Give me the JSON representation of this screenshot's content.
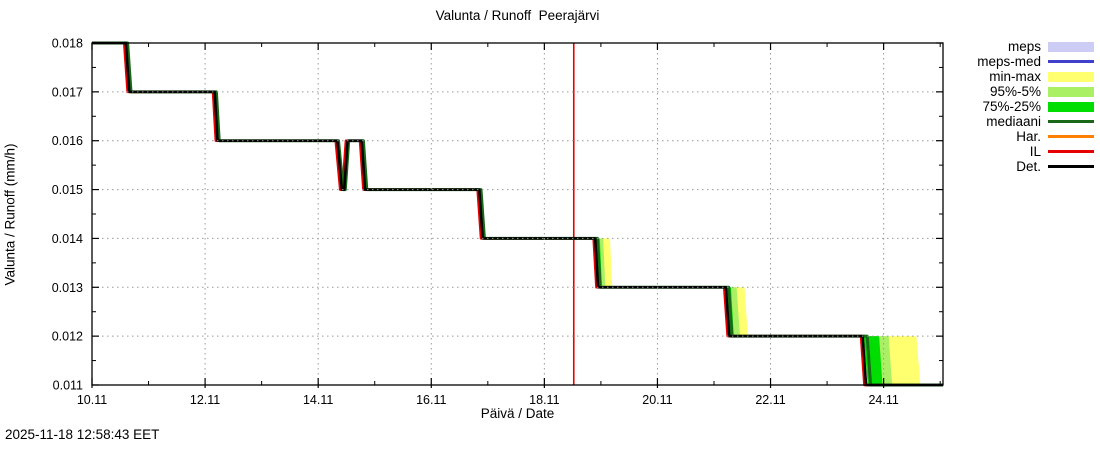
{
  "header": {
    "title": "Valunta / Runoff  Peerajärvi"
  },
  "footer": {
    "timestamp": "2025-11-18 12:58:43 EET"
  },
  "legend": {
    "items": [
      {
        "label": "meps",
        "type": "band",
        "color": "#ccccf5"
      },
      {
        "label": "meps-med",
        "type": "line",
        "color": "#4040cc"
      },
      {
        "label": "min-max",
        "type": "band",
        "color": "#ffff70"
      },
      {
        "label": "95%-5%",
        "type": "band",
        "color": "#aaf064"
      },
      {
        "label": "75%-25%",
        "type": "band",
        "color": "#00dd00"
      },
      {
        "label": "mediaani",
        "type": "line",
        "color": "#186818"
      },
      {
        "label": "Har.",
        "type": "line",
        "color": "#ff8000"
      },
      {
        "label": "IL",
        "type": "line",
        "color": "#e60000"
      },
      {
        "label": "Det.",
        "type": "line",
        "color": "#000000"
      }
    ]
  },
  "chart_data": {
    "type": "line",
    "title": "Valunta / Runoff  Peerajärvi",
    "xlabel": "Päivä / Date",
    "ylabel": "Valunta / Runoff (mm/h)",
    "x_domain": [
      10.0,
      25.05
    ],
    "y_domain": [
      0.011,
      0.018
    ],
    "grid": true,
    "grid_color": "#9a9a9a",
    "legend_position": "outside-right",
    "x_ticks": [
      {
        "v": 10,
        "label": "10.11"
      },
      {
        "v": 12,
        "label": "12.11"
      },
      {
        "v": 14,
        "label": "14.11"
      },
      {
        "v": 16,
        "label": "16.11"
      },
      {
        "v": 18,
        "label": "18.11"
      },
      {
        "v": 20,
        "label": "20.11"
      },
      {
        "v": 22,
        "label": "22.11"
      },
      {
        "v": 24,
        "label": "24.11"
      }
    ],
    "x_minor_ticks": [
      11,
      13,
      15,
      17,
      19,
      21,
      23,
      25
    ],
    "y_ticks": [
      {
        "v": 0.011,
        "label": "0.011"
      },
      {
        "v": 0.012,
        "label": "0.012"
      },
      {
        "v": 0.013,
        "label": "0.013"
      },
      {
        "v": 0.014,
        "label": "0.014"
      },
      {
        "v": 0.015,
        "label": "0.015"
      },
      {
        "v": 0.016,
        "label": "0.016"
      },
      {
        "v": 0.017,
        "label": "0.017"
      },
      {
        "v": 0.018,
        "label": "0.018"
      }
    ],
    "y_minor_ticks": [
      0.0115,
      0.0125,
      0.0135,
      0.0145,
      0.0155,
      0.0165,
      0.0175
    ],
    "now_line": {
      "x": 18.52,
      "color": "#e60000"
    },
    "bands": [
      {
        "name": "min-max",
        "color": "#ffff70",
        "polygons": [
          [
            [
              18.93,
              0.014
            ],
            [
              19.16,
              0.014
            ],
            [
              19.2,
              0.013
            ],
            [
              18.97,
              0.013
            ]
          ],
          [
            [
              21.22,
              0.013
            ],
            [
              21.54,
              0.013
            ],
            [
              21.6,
              0.012
            ],
            [
              21.28,
              0.012
            ]
          ],
          [
            [
              23.65,
              0.012
            ],
            [
              24.58,
              0.012
            ],
            [
              24.65,
              0.011
            ],
            [
              23.72,
              0.011
            ]
          ]
        ]
      },
      {
        "name": "95%-5%",
        "color": "#aaf064",
        "polygons": [
          [
            [
              18.93,
              0.014
            ],
            [
              19.04,
              0.014
            ],
            [
              19.08,
              0.013
            ],
            [
              18.97,
              0.013
            ]
          ],
          [
            [
              21.22,
              0.013
            ],
            [
              21.4,
              0.013
            ],
            [
              21.46,
              0.012
            ],
            [
              21.28,
              0.012
            ]
          ],
          [
            [
              23.65,
              0.012
            ],
            [
              24.09,
              0.012
            ],
            [
              24.15,
              0.011
            ],
            [
              23.72,
              0.011
            ]
          ]
        ]
      },
      {
        "name": "75%-25%",
        "color": "#00dd00",
        "polygons": [
          [
            [
              18.93,
              0.014
            ],
            [
              18.98,
              0.014
            ],
            [
              19.02,
              0.013
            ],
            [
              18.97,
              0.013
            ]
          ],
          [
            [
              21.22,
              0.013
            ],
            [
              21.3,
              0.013
            ],
            [
              21.35,
              0.012
            ],
            [
              21.28,
              0.012
            ]
          ],
          [
            [
              23.65,
              0.012
            ],
            [
              23.92,
              0.012
            ],
            [
              23.98,
              0.011
            ],
            [
              23.72,
              0.011
            ]
          ]
        ]
      }
    ],
    "series": [
      {
        "name": "Har.",
        "color": "#ff8000",
        "width": 2.5,
        "points": [
          [
            10.0,
            0.018
          ],
          [
            10.58,
            0.018
          ],
          [
            10.64,
            0.017
          ],
          [
            12.15,
            0.017
          ],
          [
            12.2,
            0.016
          ],
          [
            14.32,
            0.016
          ],
          [
            14.4,
            0.015
          ],
          [
            14.44,
            0.015
          ],
          [
            14.5,
            0.016
          ],
          [
            14.75,
            0.016
          ],
          [
            14.81,
            0.015
          ],
          [
            16.83,
            0.015
          ],
          [
            16.89,
            0.014
          ],
          [
            18.88,
            0.014
          ],
          [
            18.93,
            0.013
          ],
          [
            21.19,
            0.013
          ],
          [
            21.25,
            0.012
          ],
          [
            23.61,
            0.012
          ],
          [
            23.67,
            0.011
          ],
          [
            25.05,
            0.011
          ]
        ]
      },
      {
        "name": "IL",
        "color": "#e60000",
        "width": 2.5,
        "points": [
          [
            10.0,
            0.018
          ],
          [
            10.57,
            0.018
          ],
          [
            10.63,
            0.017
          ],
          [
            12.14,
            0.017
          ],
          [
            12.19,
            0.016
          ],
          [
            14.31,
            0.016
          ],
          [
            14.39,
            0.015
          ],
          [
            14.43,
            0.015
          ],
          [
            14.49,
            0.016
          ],
          [
            14.74,
            0.016
          ],
          [
            14.8,
            0.015
          ],
          [
            16.82,
            0.015
          ],
          [
            16.88,
            0.014
          ],
          [
            18.87,
            0.014
          ],
          [
            18.92,
            0.013
          ],
          [
            21.18,
            0.013
          ],
          [
            21.24,
            0.012
          ],
          [
            23.6,
            0.012
          ],
          [
            23.66,
            0.011
          ],
          [
            25.05,
            0.011
          ]
        ]
      },
      {
        "name": "mediaani",
        "color": "#186818",
        "width": 3,
        "points": [
          [
            10.0,
            0.018
          ],
          [
            10.63,
            0.018
          ],
          [
            10.69,
            0.017
          ],
          [
            12.2,
            0.017
          ],
          [
            12.25,
            0.016
          ],
          [
            14.36,
            0.016
          ],
          [
            14.44,
            0.015
          ],
          [
            14.48,
            0.015
          ],
          [
            14.54,
            0.016
          ],
          [
            14.8,
            0.016
          ],
          [
            14.86,
            0.015
          ],
          [
            16.88,
            0.015
          ],
          [
            16.94,
            0.014
          ],
          [
            18.94,
            0.014
          ],
          [
            18.99,
            0.013
          ],
          [
            21.26,
            0.013
          ],
          [
            21.32,
            0.012
          ],
          [
            23.71,
            0.012
          ],
          [
            23.77,
            0.011
          ],
          [
            25.05,
            0.011
          ]
        ]
      },
      {
        "name": "Det.",
        "color": "#000000",
        "width": 2.5,
        "points": [
          [
            10.0,
            0.018
          ],
          [
            10.6,
            0.018
          ],
          [
            10.66,
            0.017
          ],
          [
            12.17,
            0.017
          ],
          [
            12.22,
            0.016
          ],
          [
            14.34,
            0.016
          ],
          [
            14.42,
            0.015
          ],
          [
            14.46,
            0.015
          ],
          [
            14.52,
            0.016
          ],
          [
            14.77,
            0.016
          ],
          [
            14.83,
            0.015
          ],
          [
            16.85,
            0.015
          ],
          [
            16.91,
            0.014
          ],
          [
            18.9,
            0.014
          ],
          [
            18.95,
            0.013
          ],
          [
            21.21,
            0.013
          ],
          [
            21.27,
            0.012
          ],
          [
            23.63,
            0.012
          ],
          [
            23.69,
            0.011
          ],
          [
            25.05,
            0.011
          ]
        ]
      }
    ]
  }
}
